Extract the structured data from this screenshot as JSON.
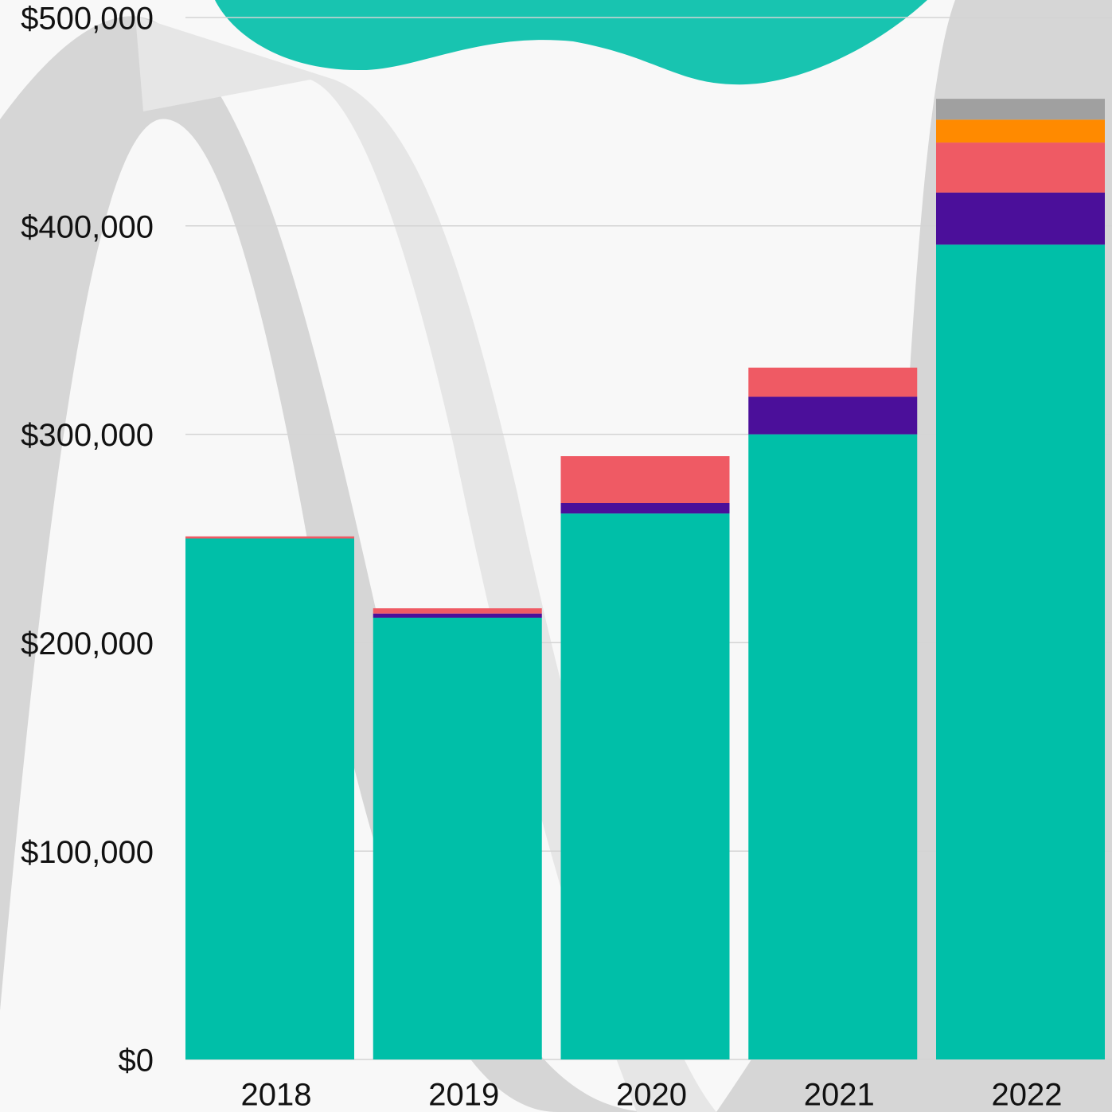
{
  "chart_data": {
    "type": "stacked_bar",
    "categories": [
      "2018",
      "2019",
      "2020",
      "2021",
      "2022"
    ],
    "series": [
      {
        "color": "#00bfa8",
        "values": [
          250000,
          212000,
          262000,
          300000,
          391000
        ]
      },
      {
        "color": "#4b0f9a",
        "values": [
          0,
          2000,
          5000,
          18000,
          25000
        ]
      },
      {
        "color": "#ef5a64",
        "values": [
          1000,
          2500,
          22500,
          14000,
          24000
        ]
      },
      {
        "color": "#ff8a00",
        "values": [
          0,
          0,
          0,
          0,
          11000
        ]
      },
      {
        "color": "#a0a0a0",
        "values": [
          0,
          0,
          0,
          0,
          10000
        ]
      }
    ],
    "ylim": [
      0,
      500000
    ],
    "yticks": [
      {
        "value": 0,
        "label": "$0"
      },
      {
        "value": 100000,
        "label": "$100,000"
      },
      {
        "value": 200000,
        "label": "$200,000"
      },
      {
        "value": 300000,
        "label": "$300,000"
      },
      {
        "value": 400000,
        "label": "$400,000"
      },
      {
        "value": 500000,
        "label": "$500,000"
      }
    ],
    "grid": true
  }
}
